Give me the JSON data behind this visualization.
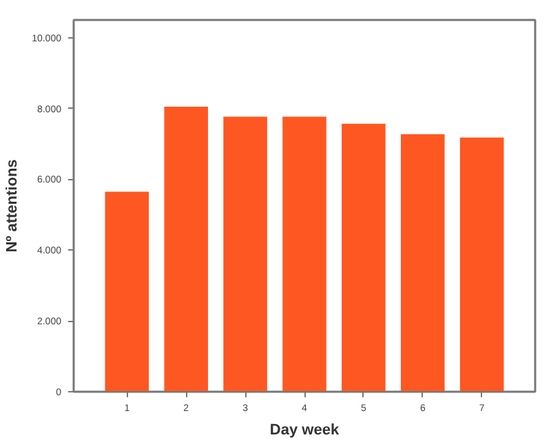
{
  "chart_data": {
    "type": "bar",
    "xlabel": "Day week",
    "ylabel": "Nº attentions",
    "categories": [
      "1",
      "2",
      "3",
      "4",
      "5",
      "6",
      "7"
    ],
    "values": [
      5650,
      8050,
      7770,
      7770,
      7570,
      7270,
      7180
    ],
    "color": "#ff5722",
    "ylim": [
      0,
      10500
    ],
    "yticks": [
      {
        "value": 0,
        "label": "0"
      },
      {
        "value": 2000,
        "label": "2.000"
      },
      {
        "value": 4000,
        "label": "4.000"
      },
      {
        "value": 6000,
        "label": "6.000"
      },
      {
        "value": 8000,
        "label": "8.000"
      },
      {
        "value": 10000,
        "label": "10.000"
      }
    ],
    "grid": false
  }
}
